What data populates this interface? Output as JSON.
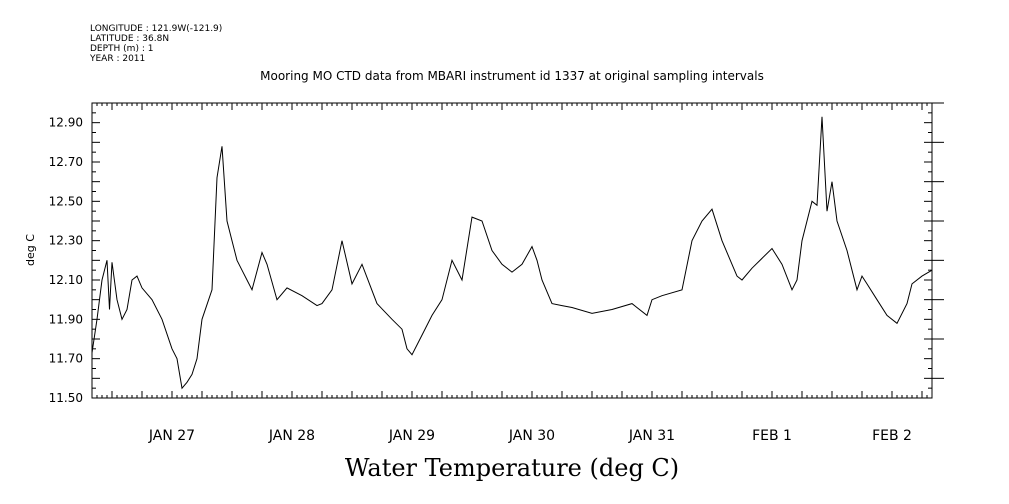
{
  "header": {
    "longitude": "LONGITUDE : 121.9W(-121.9)",
    "latitude": "LATITUDE : 36.8N",
    "depth": "DEPTH (m) : 1",
    "year": "YEAR : 2011"
  },
  "chart_data": {
    "type": "line",
    "title": "Mooring MO CTD data from MBARI instrument id 1337 at original sampling intervals",
    "xlabel": "Water Temperature (deg C)",
    "ylabel": "deg C",
    "ylim": [
      11.5,
      13.0
    ],
    "yticks": [
      "11.50",
      "11.70",
      "11.90",
      "12.10",
      "12.30",
      "12.50",
      "12.70",
      "12.90"
    ],
    "ytick_values": [
      11.5,
      11.7,
      11.9,
      12.1,
      12.3,
      12.5,
      12.7,
      12.9
    ],
    "xlim": [
      "2011-01-26T20:00",
      "2011-02-02T20:00"
    ],
    "hour_ticks": [
      "00",
      "06",
      "12",
      "18"
    ],
    "day_labels": [
      "JAN 27",
      "JAN 28",
      "JAN 29",
      "JAN 30",
      "JAN 31",
      "FEB  1",
      "FEB  2"
    ],
    "grid": false,
    "series": [
      {
        "x": [
          "2011-01-26T20:00",
          "2011-01-26T21:00",
          "2011-01-26T22:00",
          "2011-01-26T23:00",
          "2011-01-26T23:30",
          "2011-01-27T00:00",
          "2011-01-27T01:00",
          "2011-01-27T02:00",
          "2011-01-27T03:00",
          "2011-01-27T04:00",
          "2011-01-27T05:00",
          "2011-01-27T06:00",
          "2011-01-27T08:00",
          "2011-01-27T10:00",
          "2011-01-27T12:00",
          "2011-01-27T13:00",
          "2011-01-27T14:00",
          "2011-01-27T15:00",
          "2011-01-27T16:00",
          "2011-01-27T17:00",
          "2011-01-27T18:00",
          "2011-01-27T20:00",
          "2011-01-27T21:00",
          "2011-01-27T22:00",
          "2011-01-27T23:00",
          "2011-01-28T00:00",
          "2011-01-28T01:00",
          "2011-01-28T02:00",
          "2011-01-28T03:00",
          "2011-01-28T04:00",
          "2011-01-28T06:00",
          "2011-01-28T07:00",
          "2011-01-28T09:00",
          "2011-01-28T11:00",
          "2011-01-28T14:00",
          "2011-01-28T17:00",
          "2011-01-28T18:00",
          "2011-01-28T20:00",
          "2011-01-28T22:00",
          "2011-01-29T00:00",
          "2011-01-29T02:00",
          "2011-01-29T05:00",
          "2011-01-29T08:00",
          "2011-01-29T10:00",
          "2011-01-29T11:00",
          "2011-01-29T12:00",
          "2011-01-29T14:00",
          "2011-01-29T16:00",
          "2011-01-29T18:00",
          "2011-01-29T20:00",
          "2011-01-29T22:00",
          "2011-01-30T00:00",
          "2011-01-30T02:00",
          "2011-01-30T04:00",
          "2011-01-30T06:00",
          "2011-01-30T08:00",
          "2011-01-30T10:00",
          "2011-01-30T12:00",
          "2011-01-30T13:00",
          "2011-01-30T14:00",
          "2011-01-30T16:00",
          "2011-01-30T18:00",
          "2011-01-30T20:00",
          "2011-01-31T00:00",
          "2011-01-31T04:00",
          "2011-01-31T08:00",
          "2011-01-31T11:00",
          "2011-01-31T12:00",
          "2011-01-31T14:00",
          "2011-01-31T18:00",
          "2011-01-31T20:00",
          "2011-01-31T22:00",
          "2011-02-01T00:00",
          "2011-02-01T02:00",
          "2011-02-01T04:00",
          "2011-02-01T05:00",
          "2011-02-01T06:00",
          "2011-02-01T08:00",
          "2011-02-01T12:00",
          "2011-02-01T14:00",
          "2011-02-01T16:00",
          "2011-02-01T17:00",
          "2011-02-01T18:00",
          "2011-02-01T20:00",
          "2011-02-01T21:00",
          "2011-02-01T22:00",
          "2011-02-01T23:00",
          "2011-02-02T00:00",
          "2011-02-02T01:00",
          "2011-02-02T03:00",
          "2011-02-02T05:00",
          "2011-02-02T06:00",
          "2011-02-02T07:00",
          "2011-02-02T09:00",
          "2011-02-02T11:00",
          "2011-02-02T13:00",
          "2011-02-02T15:00",
          "2011-02-02T16:00",
          "2011-02-02T18:00",
          "2011-02-02T20:00"
        ],
        "values": [
          11.73,
          11.9,
          12.1,
          12.2,
          11.95,
          12.19,
          12.0,
          11.9,
          11.95,
          12.1,
          12.12,
          12.06,
          12.0,
          11.9,
          11.75,
          11.7,
          11.55,
          11.58,
          11.62,
          11.7,
          11.9,
          12.05,
          12.62,
          12.78,
          12.4,
          12.3,
          12.2,
          12.15,
          12.1,
          12.05,
          12.24,
          12.18,
          12.0,
          12.06,
          12.02,
          11.97,
          11.98,
          12.05,
          12.3,
          12.08,
          12.18,
          11.98,
          11.9,
          11.85,
          11.75,
          11.72,
          11.82,
          11.92,
          12.0,
          12.2,
          12.1,
          12.42,
          12.4,
          12.25,
          12.18,
          12.14,
          12.18,
          12.27,
          12.2,
          12.1,
          11.98,
          11.97,
          11.96,
          11.93,
          11.95,
          11.98,
          11.92,
          12.0,
          12.02,
          12.05,
          12.3,
          12.4,
          12.46,
          12.3,
          12.18,
          12.12,
          12.1,
          12.16,
          12.26,
          12.18,
          12.05,
          12.1,
          12.3,
          12.5,
          12.48,
          12.93,
          12.45,
          12.6,
          12.4,
          12.25,
          12.05,
          12.12,
          12.08,
          12.0,
          11.92,
          11.88,
          11.98,
          12.08,
          12.12,
          12.15
        ]
      }
    ]
  }
}
